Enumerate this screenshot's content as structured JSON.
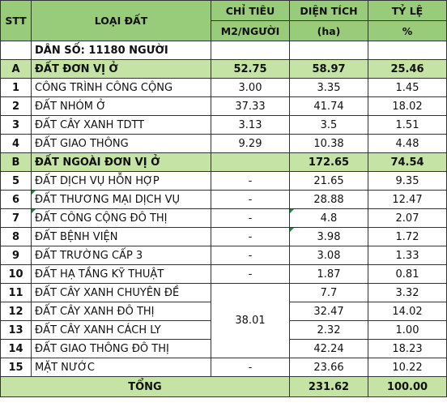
{
  "header": {
    "stt": "STT",
    "name": "LOẠI ĐẤT",
    "quota_line1": "CHỈ TIÊU",
    "quota_line2": "M2/NGƯỜI",
    "area_line1": "DIỆN TÍCH",
    "area_line2": "(ha)",
    "ratio_line1": "TỶ LỆ",
    "ratio_line2": "%"
  },
  "population": "DÂN SỐ: 11180 NGƯỜI",
  "group_a": {
    "stt": "A",
    "name": "ĐẤT ĐƠN VỊ Ở",
    "quota": "52.75",
    "area": "58.97",
    "ratio": "25.46"
  },
  "rows_a": [
    {
      "stt": "1",
      "name": "CÔNG TRÌNH CÔNG CỘNG",
      "quota": "3.00",
      "area": "3.35",
      "ratio": "1.45"
    },
    {
      "stt": "2",
      "name": "ĐẤT NHÓM Ở",
      "quota": "37.33",
      "area": "41.74",
      "ratio": "18.02"
    },
    {
      "stt": "3",
      "name": "ĐẤT CÂY XANH TDTT",
      "quota": "3.13",
      "area": "3.5",
      "ratio": "1.51"
    },
    {
      "stt": "4",
      "name": "ĐẤT GIAO THÔNG",
      "quota": "9.29",
      "area": "10.38",
      "ratio": "4.48"
    }
  ],
  "group_b": {
    "stt": "B",
    "name": "ĐẤT NGOÀI ĐƠN VỊ Ở",
    "quota": "",
    "area": "172.65",
    "ratio": "74.54"
  },
  "rows_b": [
    {
      "stt": "5",
      "name": "ĐẤT DỊCH VỤ HỖN HỢP",
      "quota": "-",
      "area": "21.65",
      "ratio": "9.35"
    },
    {
      "stt": "6",
      "name": "ĐẤT THƯƠNG MẠI DỊCH VỤ",
      "quota": "-",
      "area": "28.88",
      "ratio": "12.47"
    },
    {
      "stt": "7",
      "name": "ĐẤT CÔNG CỘNG ĐÔ THỊ",
      "quota": "-",
      "area": "4.8",
      "ratio": "2.07"
    },
    {
      "stt": "8",
      "name": "ĐẤT BỆNH VIỆN",
      "quota": "-",
      "area": "3.98",
      "ratio": "1.72"
    },
    {
      "stt": "9",
      "name": "ĐẤT TRƯỜNG CẤP 3",
      "quota": "-",
      "area": "3.08",
      "ratio": "1.33"
    },
    {
      "stt": "10",
      "name": "ĐẤT HẠ TẦNG KỸ THUẬT",
      "quota": "-",
      "area": "1.87",
      "ratio": "0.81"
    },
    {
      "stt": "11",
      "name": "ĐẤT CÂY XANH CHUYÊN ĐỀ",
      "quota": "",
      "area": "7.7",
      "ratio": "3.32"
    },
    {
      "stt": "12",
      "name": "ĐẤT CÂY XANH ĐÔ THỊ",
      "quota": "38.01",
      "area": "32.47",
      "ratio": "14.02"
    },
    {
      "stt": "13",
      "name": "ĐẤT CÂY XANH CÁCH LY",
      "quota": "",
      "area": "2.32",
      "ratio": "1.00"
    },
    {
      "stt": "14",
      "name": "ĐẤT GIAO THÔNG ĐÔ THỊ",
      "quota": "",
      "area": "42.24",
      "ratio": "18.23"
    },
    {
      "stt": "15",
      "name": "MẶT NƯỚC",
      "quota": "-",
      "area": "23.66",
      "ratio": "10.22"
    }
  ],
  "total": {
    "label": "TỔNG",
    "area": "231.62",
    "ratio": "100.00"
  },
  "colors": {
    "header_bg": "#99cc7a",
    "group_bg": "#c4e3a4",
    "comment_marker": "#1a8a3a"
  }
}
